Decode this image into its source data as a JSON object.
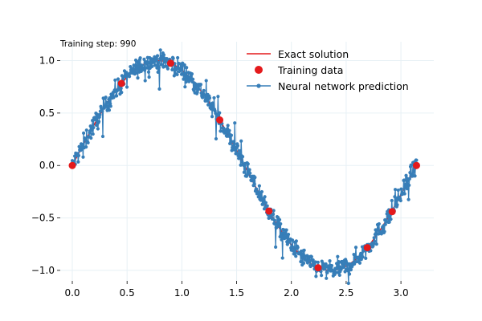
{
  "step_label": "Training step: 990",
  "chart_data": {
    "type": "line",
    "title": "",
    "xlabel": "",
    "ylabel": "",
    "xlim": [
      -0.11,
      3.3
    ],
    "ylim": [
      -1.1,
      1.18
    ],
    "x_ticks": [
      0.0,
      0.5,
      1.0,
      1.5,
      2.0,
      2.5,
      3.0
    ],
    "x_tick_labels": [
      "0.0",
      "0.5",
      "1.0",
      "1.5",
      "2.0",
      "2.5",
      "3.0"
    ],
    "y_ticks": [
      -1.0,
      -0.5,
      0.0,
      0.5,
      1.0
    ],
    "y_tick_labels": [
      "−1.0",
      "−0.5",
      "0.0",
      "0.5",
      "1.0"
    ],
    "grid": true,
    "legend_position": "top-right",
    "series": [
      {
        "name": "Exact solution",
        "kind": "line",
        "color": "#e41a1c",
        "function": "sin(2x)",
        "x_range": [
          0.0,
          3.14159
        ]
      },
      {
        "name": "Training data",
        "kind": "scatter",
        "color": "#e41a1c",
        "x": [
          0.0,
          0.449,
          0.898,
          1.346,
          1.795,
          2.244,
          2.693,
          2.92,
          3.142
        ],
        "y": [
          0.0,
          0.783,
          0.975,
          0.434,
          -0.434,
          -0.975,
          -0.783,
          -0.44,
          0.0
        ]
      },
      {
        "name": "Neural network prediction",
        "kind": "line+markers",
        "color": "#377eb8",
        "function": "sin(2x) + noise",
        "noise_amplitude": 0.065,
        "x_range": [
          0.0,
          3.14159
        ],
        "n_points": 700
      }
    ]
  }
}
